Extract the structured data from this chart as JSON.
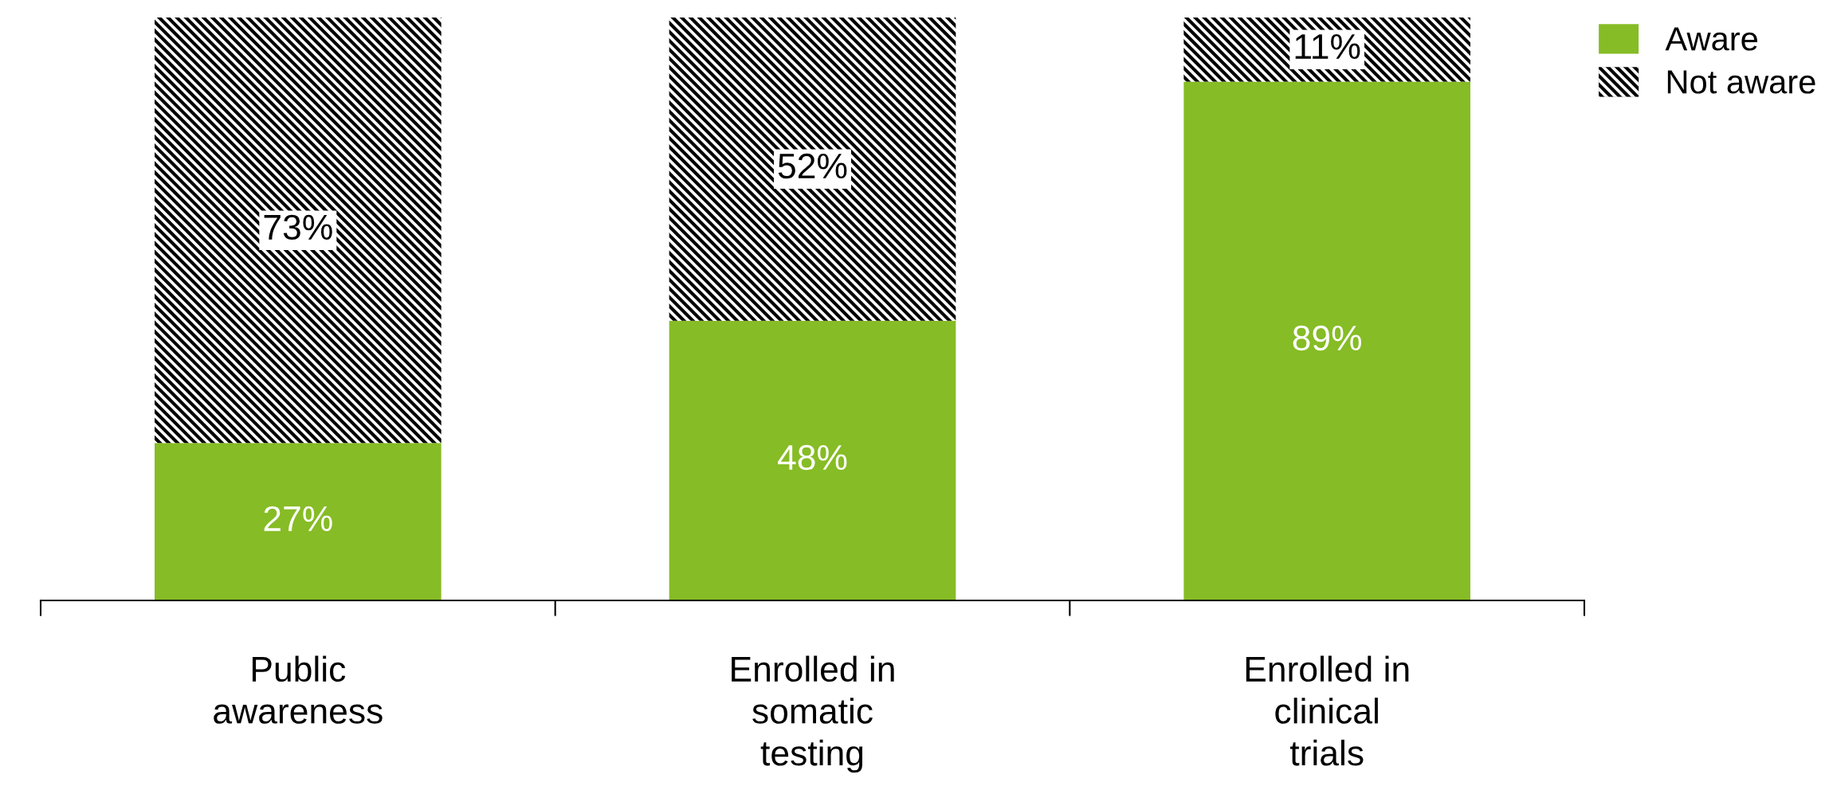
{
  "chart_data": {
    "type": "bar",
    "stacked": true,
    "categories": [
      "Public\nawareness",
      "Enrolled in\nsomatic\ntesting",
      "Enrolled in\nclinical\ntrials"
    ],
    "series": [
      {
        "name": "Aware",
        "color": "#86bc25",
        "values": [
          27,
          48,
          89
        ],
        "value_labels": [
          "27%",
          "48%",
          "89%"
        ]
      },
      {
        "name": "Not aware",
        "color": "#000000",
        "values": [
          73,
          52,
          11
        ],
        "value_labels": [
          "73%",
          "52%",
          "11%"
        ]
      }
    ],
    "legend": "top right",
    "grid": false
  }
}
